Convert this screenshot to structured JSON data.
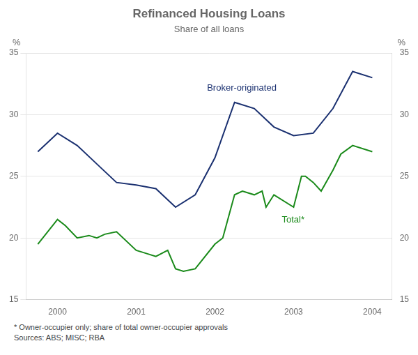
{
  "chart_data": {
    "type": "line",
    "title": "Refinanced Housing Loans",
    "subtitle": "Share of all loans",
    "ylabel": "%",
    "y2label": "%",
    "footnote": "* Owner-occupier only; share of total owner-occupier approvals\nSources: ABS; MISC; RBA",
    "xlim": [
      1999.6,
      2004.25
    ],
    "xticks": [
      2000,
      2001,
      2002,
      2003,
      2004
    ],
    "ylim": [
      15,
      35
    ],
    "yticks": [
      15,
      20,
      25,
      30,
      35
    ],
    "y2lim": [
      15,
      35
    ],
    "y2ticks": [
      15,
      20,
      25,
      30,
      35
    ],
    "grid": "y",
    "series": [
      {
        "color": "#1a3070",
        "x": [
          1999.75,
          2000.0,
          2000.25,
          2000.5,
          2000.75,
          2001.0,
          2001.25,
          2001.5,
          2001.75,
          2002.0,
          2002.25,
          2002.5,
          2002.75,
          2003.0,
          2003.25,
          2003.5,
          2003.75,
          2004.0
        ],
        "values": [
          27.0,
          28.5,
          27.5,
          26.0,
          24.5,
          24.3,
          24.0,
          22.5,
          23.5,
          26.5,
          31.0,
          30.5,
          29.0,
          28.3,
          28.5,
          30.5,
          33.5,
          33.0
        ]
      },
      {
        "color": "#1a8a1a",
        "x": [
          1999.75,
          2000.0,
          2000.1,
          2000.25,
          2000.4,
          2000.5,
          2000.6,
          2000.75,
          2001.0,
          2001.1,
          2001.25,
          2001.4,
          2001.5,
          2001.6,
          2001.75,
          2002.0,
          2002.1,
          2002.25,
          2002.35,
          2002.5,
          2002.6,
          2002.65,
          2002.75,
          2003.0,
          2003.1,
          2003.15,
          2003.25,
          2003.35,
          2003.5,
          2003.6,
          2003.75,
          2004.0
        ],
        "values": [
          19.5,
          21.5,
          21.0,
          20.0,
          20.2,
          20.0,
          20.3,
          20.5,
          19.0,
          18.8,
          18.5,
          19.0,
          17.5,
          17.3,
          17.5,
          19.5,
          20.0,
          23.5,
          23.8,
          23.5,
          23.8,
          22.5,
          23.5,
          22.5,
          25.0,
          25.0,
          24.5,
          23.8,
          25.5,
          26.8,
          27.5,
          27.0
        ]
      }
    ],
    "annotations": [
      {
        "text": "Broker-originated",
        "x": 2001.9,
        "y": 31.8,
        "color": "#1a3070",
        "anchor": "bottom"
      },
      {
        "text": "Total*",
        "x": 2002.85,
        "y": 21.8,
        "color": "#1a8a1a",
        "anchor": "top"
      }
    ]
  }
}
